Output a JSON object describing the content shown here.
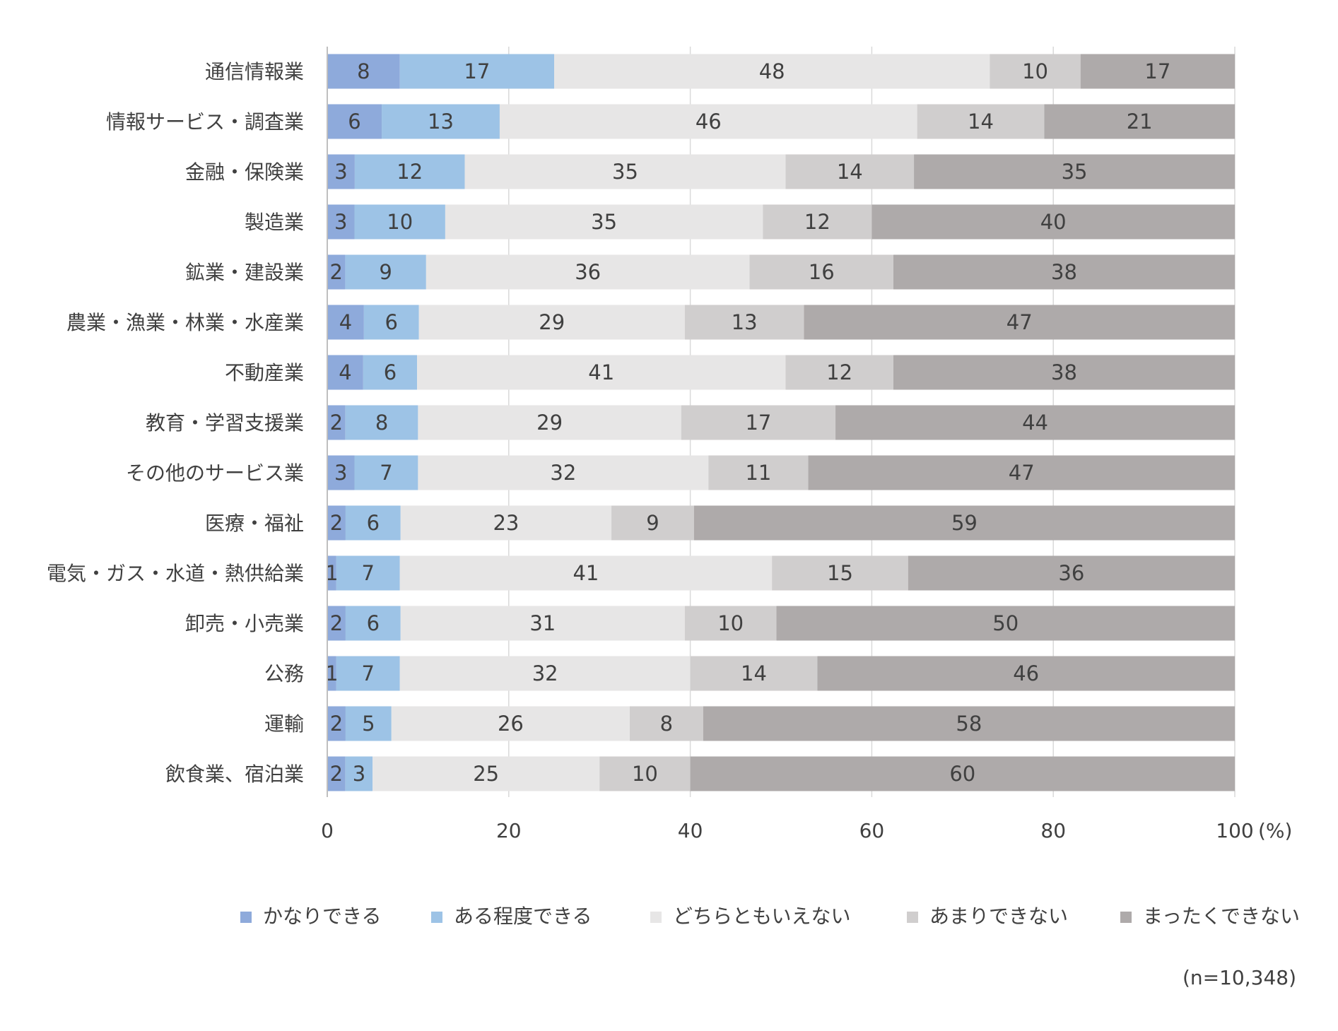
{
  "chart_data": {
    "type": "bar",
    "orientation": "horizontal",
    "stacked": true,
    "categories": [
      "通信情報業",
      "情報サービス・調査業",
      "金融・保険業",
      "製造業",
      "鉱業・建設業",
      "農業・漁業・林業・水産業",
      "不動産業",
      "教育・学習支援業",
      "その他のサービス業",
      "医療・福祉",
      "電気・ガス・水道・熱供給業",
      "卸売・小売業",
      "公務",
      "運輸",
      "飲食業、宿泊業"
    ],
    "series": [
      {
        "name": "かなりできる",
        "color": "#8eaadb",
        "values": [
          8,
          6,
          3,
          3,
          2,
          4,
          4,
          2,
          3,
          2,
          1,
          2,
          1,
          2,
          2
        ]
      },
      {
        "name": "ある程度できる",
        "color": "#9dc3e6",
        "values": [
          17,
          13,
          12,
          10,
          9,
          6,
          6,
          8,
          7,
          6,
          7,
          6,
          7,
          5,
          3
        ]
      },
      {
        "name": "どちらともいえない",
        "color": "#e7e6e6",
        "values": [
          48,
          46,
          35,
          35,
          36,
          29,
          41,
          29,
          32,
          23,
          41,
          31,
          32,
          26,
          25
        ]
      },
      {
        "name": "あまりできない",
        "color": "#d0cece",
        "values": [
          10,
          14,
          14,
          12,
          16,
          13,
          12,
          17,
          11,
          9,
          15,
          10,
          14,
          8,
          10
        ]
      },
      {
        "name": "まったくできない",
        "color": "#aeaaaa",
        "values": [
          17,
          21,
          35,
          40,
          38,
          47,
          38,
          44,
          47,
          59,
          36,
          50,
          46,
          58,
          60
        ]
      }
    ],
    "xlim": [
      0,
      100
    ],
    "xticks": [
      "0",
      "20",
      "40",
      "60",
      "80",
      "100"
    ],
    "xunit": "(%)",
    "grid": true,
    "legend": "bottom",
    "note": "(n=10,348)"
  }
}
